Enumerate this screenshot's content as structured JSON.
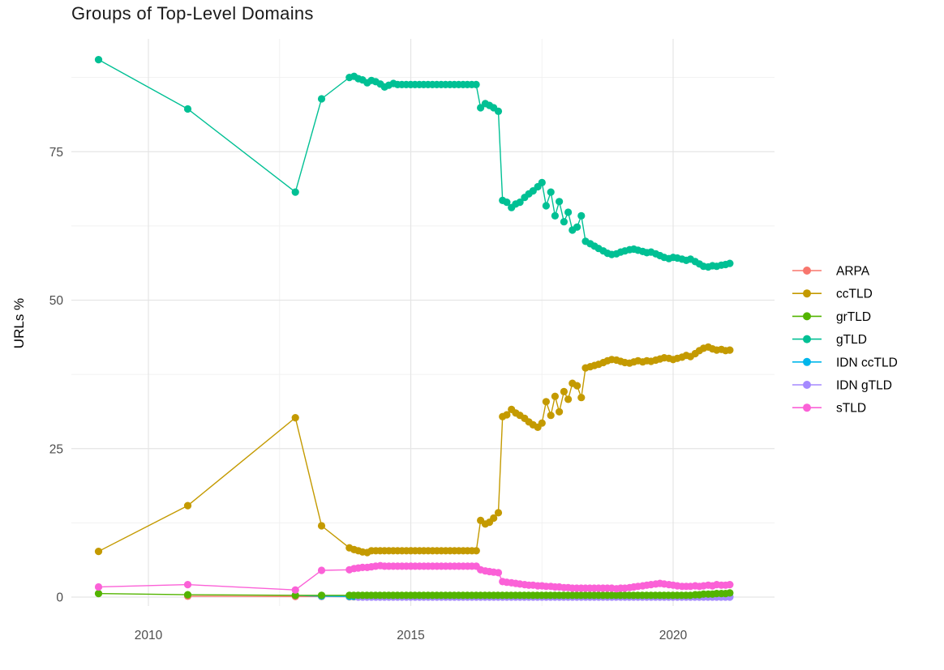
{
  "chart_data": {
    "type": "line",
    "title": "Groups of Top-Level Domains",
    "xlabel": "",
    "ylabel": "URLs %",
    "legend_position": "right",
    "grid": true,
    "axes": {
      "x_ticks": [
        2010,
        2015,
        2020
      ],
      "x_minor": [
        2012.5,
        2017.5
      ],
      "y_ticks": [
        0,
        25,
        50,
        75
      ],
      "y_minor": [
        12.5,
        37.5,
        62.5,
        87.5
      ],
      "xlim": [
        2008.5,
        2021.9
      ],
      "ylim": [
        -1.5,
        94
      ]
    },
    "colors": {
      "ARPA": "#F8766D",
      "ccTLD": "#C49A00",
      "grTLD": "#53B400",
      "gTLD": "#00C094",
      "IDN ccTLD": "#00B6EB",
      "IDN gTLD": "#A58AFF",
      "sTLD": "#FB61D7"
    },
    "legend_order": [
      "ARPA",
      "ccTLD",
      "grTLD",
      "gTLD",
      "IDN ccTLD",
      "IDN gTLD",
      "sTLD"
    ],
    "draw_order": [
      "ARPA",
      "IDN ccTLD",
      "IDN gTLD",
      "grTLD",
      "ccTLD",
      "gTLD",
      "sTLD"
    ],
    "series": [
      {
        "name": "ARPA",
        "points": [
          [
            2010.75,
            0.15
          ],
          [
            2012.8,
            0.1
          ],
          [
            2013.3,
            0.1
          ]
        ],
        "flat_runs": [
          {
            "from": 2013.83,
            "to": 2021.08,
            "step": 0.0833,
            "value": 0.05
          }
        ]
      },
      {
        "name": "IDN ccTLD",
        "points": [
          [
            2012.8,
            0.3
          ],
          [
            2013.3,
            0.15
          ]
        ],
        "flat_runs": [
          {
            "from": 2013.83,
            "to": 2021.08,
            "step": 0.0833,
            "value": 0.1
          }
        ]
      },
      {
        "name": "IDN gTLD",
        "points": [],
        "flat_runs": [
          {
            "from": 2014.0,
            "to": 2021.08,
            "step": 0.0833,
            "value": 0.0
          }
        ]
      },
      {
        "name": "grTLD",
        "points": [
          [
            2009.05,
            0.6
          ],
          [
            2010.75,
            0.4
          ],
          [
            2012.8,
            0.3
          ],
          [
            2013.3,
            0.3
          ],
          [
            2020.42,
            0.4
          ],
          [
            2020.5,
            0.4
          ],
          [
            2020.58,
            0.5
          ],
          [
            2020.67,
            0.5
          ],
          [
            2020.75,
            0.5
          ],
          [
            2020.83,
            0.6
          ],
          [
            2020.92,
            0.6
          ],
          [
            2021.0,
            0.6
          ],
          [
            2021.08,
            0.7
          ]
        ],
        "flat_runs": [
          {
            "from": 2013.83,
            "to": 2020.33,
            "step": 0.0833,
            "value": 0.3
          }
        ]
      },
      {
        "name": "ccTLD",
        "points": [
          [
            2009.05,
            7.7
          ],
          [
            2010.75,
            15.4
          ],
          [
            2012.8,
            30.2
          ],
          [
            2013.3,
            12.0
          ],
          [
            2013.83,
            8.3
          ],
          [
            2013.92,
            8.0
          ],
          [
            2014.0,
            7.8
          ],
          [
            2014.08,
            7.6
          ],
          [
            2014.17,
            7.5
          ],
          [
            2016.33,
            12.9
          ],
          [
            2016.42,
            12.3
          ],
          [
            2016.5,
            12.6
          ],
          [
            2016.58,
            13.3
          ],
          [
            2016.67,
            14.2
          ],
          [
            2016.75,
            30.4
          ],
          [
            2016.83,
            30.7
          ],
          [
            2016.92,
            31.6
          ],
          [
            2017.0,
            31.0
          ],
          [
            2017.08,
            30.6
          ],
          [
            2017.17,
            30.1
          ],
          [
            2017.25,
            29.5
          ],
          [
            2017.33,
            29.0
          ],
          [
            2017.42,
            28.6
          ],
          [
            2017.5,
            29.3
          ],
          [
            2017.58,
            32.9
          ],
          [
            2017.67,
            30.6
          ],
          [
            2017.75,
            33.8
          ],
          [
            2017.83,
            31.2
          ],
          [
            2017.92,
            34.6
          ],
          [
            2018.0,
            33.3
          ],
          [
            2018.08,
            36.0
          ],
          [
            2018.17,
            35.6
          ],
          [
            2018.25,
            33.6
          ],
          [
            2018.33,
            38.6
          ],
          [
            2018.42,
            38.8
          ],
          [
            2018.5,
            39.0
          ],
          [
            2018.58,
            39.2
          ],
          [
            2018.67,
            39.5
          ],
          [
            2018.75,
            39.8
          ],
          [
            2018.83,
            40.0
          ],
          [
            2018.92,
            39.9
          ],
          [
            2019.0,
            39.7
          ],
          [
            2019.08,
            39.5
          ],
          [
            2019.17,
            39.4
          ],
          [
            2019.25,
            39.6
          ],
          [
            2019.33,
            39.8
          ],
          [
            2019.42,
            39.6
          ],
          [
            2019.5,
            39.8
          ],
          [
            2019.58,
            39.7
          ],
          [
            2019.67,
            39.9
          ],
          [
            2019.75,
            40.1
          ],
          [
            2019.83,
            40.3
          ],
          [
            2019.92,
            40.2
          ],
          [
            2020.0,
            40.0
          ],
          [
            2020.08,
            40.2
          ],
          [
            2020.17,
            40.4
          ],
          [
            2020.25,
            40.7
          ],
          [
            2020.33,
            40.5
          ],
          [
            2020.42,
            41.0
          ],
          [
            2020.5,
            41.5
          ],
          [
            2020.58,
            41.9
          ],
          [
            2020.67,
            42.1
          ],
          [
            2020.75,
            41.8
          ],
          [
            2020.83,
            41.6
          ],
          [
            2020.92,
            41.7
          ],
          [
            2021.0,
            41.5
          ],
          [
            2021.08,
            41.6
          ]
        ],
        "flat_runs": [
          {
            "from": 2014.25,
            "to": 2016.25,
            "step": 0.0833,
            "value": 7.8
          }
        ]
      },
      {
        "name": "gTLD",
        "points": [
          [
            2009.05,
            90.5
          ],
          [
            2010.75,
            82.2
          ],
          [
            2012.8,
            68.2
          ],
          [
            2013.3,
            83.9
          ],
          [
            2013.83,
            87.5
          ],
          [
            2013.92,
            87.7
          ],
          [
            2014.0,
            87.3
          ],
          [
            2014.08,
            87.1
          ],
          [
            2014.17,
            86.6
          ],
          [
            2014.25,
            87.0
          ],
          [
            2014.33,
            86.8
          ],
          [
            2014.42,
            86.4
          ],
          [
            2014.5,
            85.9
          ],
          [
            2014.58,
            86.2
          ],
          [
            2014.67,
            86.5
          ],
          [
            2014.75,
            86.3
          ],
          [
            2016.33,
            82.4
          ],
          [
            2016.42,
            83.1
          ],
          [
            2016.5,
            82.8
          ],
          [
            2016.58,
            82.4
          ],
          [
            2016.67,
            81.8
          ],
          [
            2016.75,
            66.8
          ],
          [
            2016.83,
            66.5
          ],
          [
            2016.92,
            65.6
          ],
          [
            2017.0,
            66.2
          ],
          [
            2017.08,
            66.5
          ],
          [
            2017.17,
            67.3
          ],
          [
            2017.25,
            67.9
          ],
          [
            2017.33,
            68.4
          ],
          [
            2017.42,
            69.1
          ],
          [
            2017.5,
            69.8
          ],
          [
            2017.58,
            65.9
          ],
          [
            2017.67,
            68.2
          ],
          [
            2017.75,
            64.2
          ],
          [
            2017.83,
            66.6
          ],
          [
            2017.92,
            63.2
          ],
          [
            2018.0,
            64.8
          ],
          [
            2018.08,
            61.8
          ],
          [
            2018.17,
            62.3
          ],
          [
            2018.25,
            64.2
          ],
          [
            2018.33,
            59.9
          ],
          [
            2018.42,
            59.5
          ],
          [
            2018.5,
            59.1
          ],
          [
            2018.58,
            58.7
          ],
          [
            2018.67,
            58.3
          ],
          [
            2018.75,
            57.9
          ],
          [
            2018.83,
            57.7
          ],
          [
            2018.92,
            57.8
          ],
          [
            2019.0,
            58.1
          ],
          [
            2019.08,
            58.3
          ],
          [
            2019.17,
            58.5
          ],
          [
            2019.25,
            58.6
          ],
          [
            2019.33,
            58.4
          ],
          [
            2019.42,
            58.2
          ],
          [
            2019.5,
            58.0
          ],
          [
            2019.58,
            58.1
          ],
          [
            2019.67,
            57.8
          ],
          [
            2019.75,
            57.5
          ],
          [
            2019.83,
            57.2
          ],
          [
            2019.92,
            57.0
          ],
          [
            2020.0,
            57.2
          ],
          [
            2020.08,
            57.1
          ],
          [
            2020.17,
            56.9
          ],
          [
            2020.25,
            56.7
          ],
          [
            2020.33,
            56.9
          ],
          [
            2020.42,
            56.5
          ],
          [
            2020.5,
            56.1
          ],
          [
            2020.58,
            55.7
          ],
          [
            2020.67,
            55.6
          ],
          [
            2020.75,
            55.8
          ],
          [
            2020.83,
            55.7
          ],
          [
            2020.92,
            55.9
          ],
          [
            2021.0,
            56.0
          ],
          [
            2021.08,
            56.2
          ]
        ],
        "flat_runs": [
          {
            "from": 2014.83,
            "to": 2016.25,
            "step": 0.0833,
            "value": 86.3
          }
        ]
      },
      {
        "name": "sTLD",
        "points": [
          [
            2009.05,
            1.7
          ],
          [
            2010.75,
            2.1
          ],
          [
            2012.8,
            1.2
          ],
          [
            2013.3,
            4.5
          ],
          [
            2013.83,
            4.6
          ],
          [
            2013.92,
            4.8
          ],
          [
            2014.0,
            4.9
          ],
          [
            2014.08,
            5.0
          ],
          [
            2014.17,
            5.0
          ],
          [
            2014.25,
            5.1
          ],
          [
            2014.33,
            5.2
          ],
          [
            2014.42,
            5.3
          ],
          [
            2016.33,
            4.6
          ],
          [
            2016.42,
            4.4
          ],
          [
            2016.5,
            4.3
          ],
          [
            2016.58,
            4.2
          ],
          [
            2016.67,
            4.1
          ],
          [
            2016.75,
            2.6
          ],
          [
            2016.83,
            2.5
          ],
          [
            2016.92,
            2.4
          ],
          [
            2017.0,
            2.3
          ],
          [
            2017.08,
            2.2
          ],
          [
            2017.17,
            2.1
          ],
          [
            2017.25,
            2.0
          ],
          [
            2017.33,
            2.0
          ],
          [
            2017.42,
            1.9
          ],
          [
            2017.5,
            1.9
          ],
          [
            2017.58,
            1.8
          ],
          [
            2017.67,
            1.8
          ],
          [
            2017.75,
            1.7
          ],
          [
            2017.83,
            1.7
          ],
          [
            2017.92,
            1.6
          ],
          [
            2018.0,
            1.6
          ],
          [
            2018.92,
            1.4
          ],
          [
            2019.0,
            1.5
          ],
          [
            2019.08,
            1.5
          ],
          [
            2019.17,
            1.6
          ],
          [
            2019.25,
            1.7
          ],
          [
            2019.33,
            1.8
          ],
          [
            2019.42,
            1.9
          ],
          [
            2019.5,
            2.0
          ],
          [
            2019.58,
            2.1
          ],
          [
            2019.67,
            2.2
          ],
          [
            2019.75,
            2.3
          ],
          [
            2019.83,
            2.2
          ],
          [
            2019.92,
            2.1
          ],
          [
            2020.0,
            2.0
          ],
          [
            2020.08,
            1.9
          ],
          [
            2020.17,
            1.8
          ],
          [
            2020.25,
            1.8
          ],
          [
            2020.33,
            1.8
          ],
          [
            2020.42,
            1.9
          ],
          [
            2020.5,
            1.8
          ],
          [
            2020.58,
            1.9
          ],
          [
            2020.67,
            2.0
          ],
          [
            2020.75,
            1.9
          ],
          [
            2020.83,
            2.1
          ],
          [
            2020.92,
            2.0
          ],
          [
            2021.0,
            2.0
          ],
          [
            2021.08,
            2.1
          ]
        ],
        "flat_runs": [
          {
            "from": 2014.5,
            "to": 2016.25,
            "step": 0.0833,
            "value": 5.2
          },
          {
            "from": 2018.08,
            "to": 2018.83,
            "step": 0.0833,
            "value": 1.5
          }
        ]
      }
    ]
  }
}
